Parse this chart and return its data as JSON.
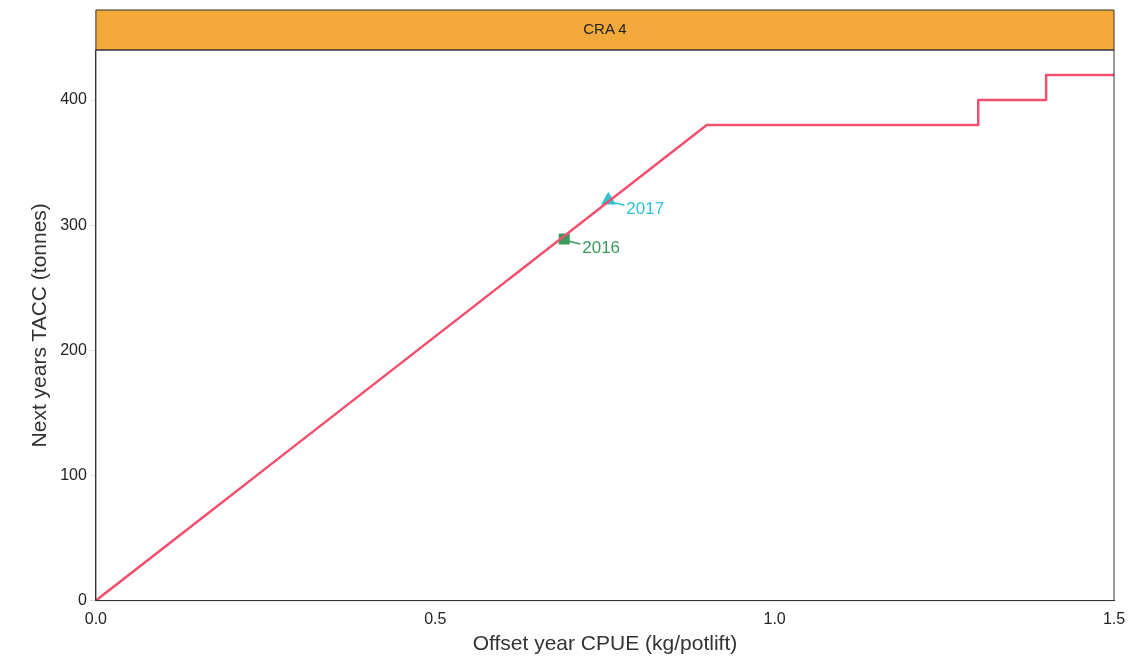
{
  "chart_data": {
    "type": "line",
    "title": "CRA 4",
    "xlabel": "Offset year CPUE (kg/potlift)",
    "ylabel": "Next years TACC (tonnes)",
    "series": [
      {
        "color": "#f0506e",
        "marker": "none",
        "x": [
          0,
          0.9,
          1.3,
          1.3,
          1.4,
          1.4,
          1.5
        ],
        "values": [
          0,
          380,
          380,
          400,
          400,
          420,
          420
        ]
      },
      {
        "type": "scatter",
        "color": "#3a9a5a",
        "marker": "square",
        "x": [
          0.69
        ],
        "values": [
          289
        ]
      },
      {
        "type": "scatter",
        "color": "#2ec4d0",
        "marker": "triangle",
        "x": [
          0.755
        ],
        "values": [
          320
        ]
      }
    ],
    "annotations": [
      {
        "text": "2016",
        "x": 0.69,
        "y": 289
      },
      {
        "text": "2017",
        "x": 0.755,
        "y": 320
      }
    ],
    "xlim": [
      0,
      1.5
    ],
    "xticks": [
      {
        "value": 0,
        "label": "0.0"
      },
      0.5,
      {
        "value": 1,
        "label": "1.0"
      },
      1.5
    ],
    "ylim": [
      0,
      440
    ],
    "yticks": [
      0,
      100,
      200,
      300,
      400
    ],
    "grid": false,
    "legend": false
  }
}
